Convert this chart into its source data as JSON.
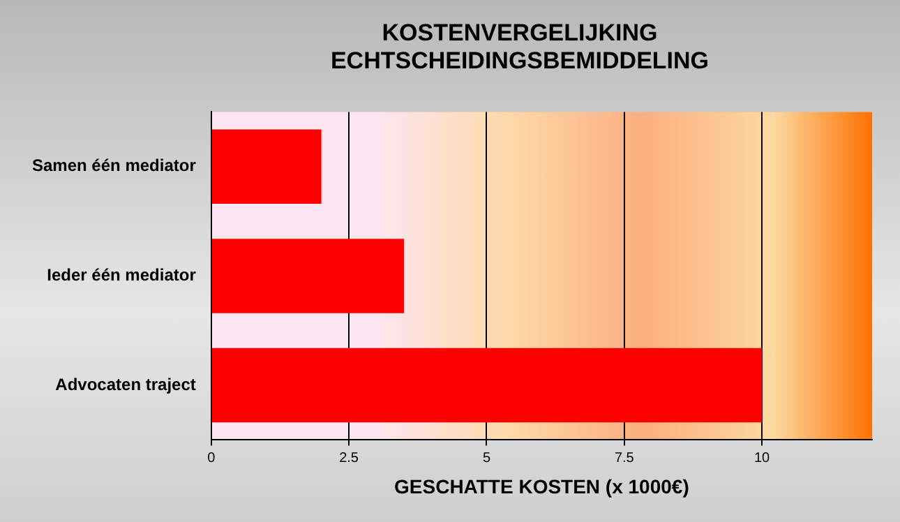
{
  "chart_data": {
    "type": "bar",
    "orientation": "horizontal",
    "title": "KOSTENVERGELIJKING ECHTSCHEIDINGSBEMIDDELING",
    "xlabel": "GESCHATTE KOSTEN (x 1000€)",
    "categories": [
      "Samen één mediator",
      "Ieder één mediator",
      "Advocaten traject"
    ],
    "values": [
      2,
      3.5,
      10
    ],
    "color": "#ff0000",
    "xlim": [
      0,
      12
    ],
    "xticks": [
      0,
      2.5,
      5,
      7.5,
      10
    ],
    "grid": "x",
    "legend": false
  }
}
